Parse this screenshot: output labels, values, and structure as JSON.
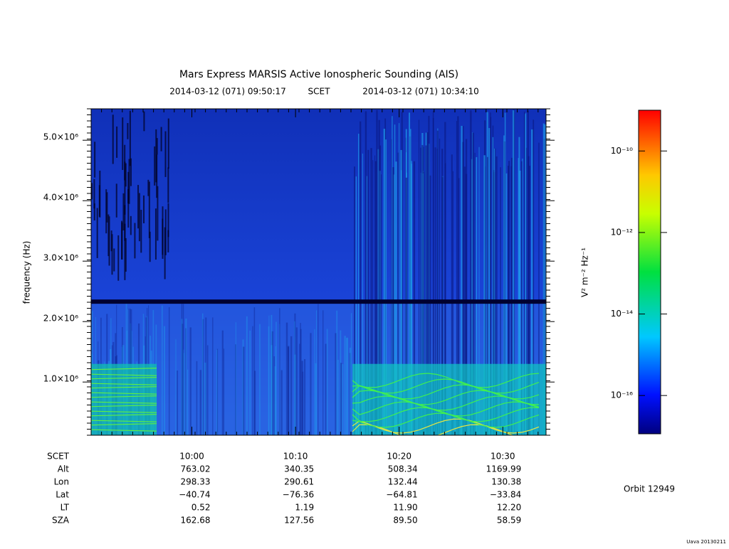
{
  "chart_data": {
    "type": "spectrogram",
    "title": "Mars Express MARSIS Active Ionospheric Sounding (AIS)",
    "start_time": "2014-03-12 (071) 09:50:17",
    "time_label": "SCET",
    "end_time": "2014-03-12 (071) 10:34:10",
    "y_label": "frequency (Hz)",
    "xlim": [
      590.28,
      634.17
    ],
    "xticks": [
      {
        "value": 600,
        "label": "10:00"
      },
      {
        "value": 610,
        "label": "10:10"
      },
      {
        "value": 620,
        "label": "10:20"
      },
      {
        "value": 630,
        "label": "10:30"
      }
    ],
    "ylim": [
      120000,
      5520000
    ],
    "yticks": [
      {
        "value": 1000000,
        "label": "1.0×10⁶"
      },
      {
        "value": 2000000,
        "label": "2.0×10⁶"
      },
      {
        "value": 3000000,
        "label": "3.0×10⁶"
      },
      {
        "value": 4000000,
        "label": "4.0×10⁶"
      },
      {
        "value": 5000000,
        "label": "5.0×10⁶"
      }
    ],
    "colorbar": {
      "label": "V² m⁻² Hz⁻¹",
      "log": true,
      "lim": [
        1.15e-17,
        1e-09
      ],
      "ticks": [
        {
          "value": 1e-10,
          "label": "10⁻¹⁰"
        },
        {
          "value": 1e-12,
          "label": "10⁻¹²"
        },
        {
          "value": 1e-14,
          "label": "10⁻¹⁴"
        },
        {
          "value": 1e-16,
          "label": "10⁻¹⁶"
        }
      ]
    },
    "ephemeris": {
      "row_labels": [
        "SCET",
        "Alt",
        "Lon",
        "Lat",
        "LT",
        "SZA"
      ],
      "rows": [
        [
          "763.02",
          "340.35",
          "508.34",
          "1169.99"
        ],
        [
          "298.33",
          "290.61",
          "132.44",
          "130.38"
        ],
        [
          "−40.74",
          "−76.36",
          "−64.81",
          "−33.84"
        ],
        [
          "0.52",
          "1.19",
          "11.90",
          "12.20"
        ],
        [
          "162.68",
          "127.56",
          "89.50",
          "58.59"
        ]
      ]
    },
    "orbit": "Orbit 12949",
    "footer": "Uava 20130211"
  }
}
